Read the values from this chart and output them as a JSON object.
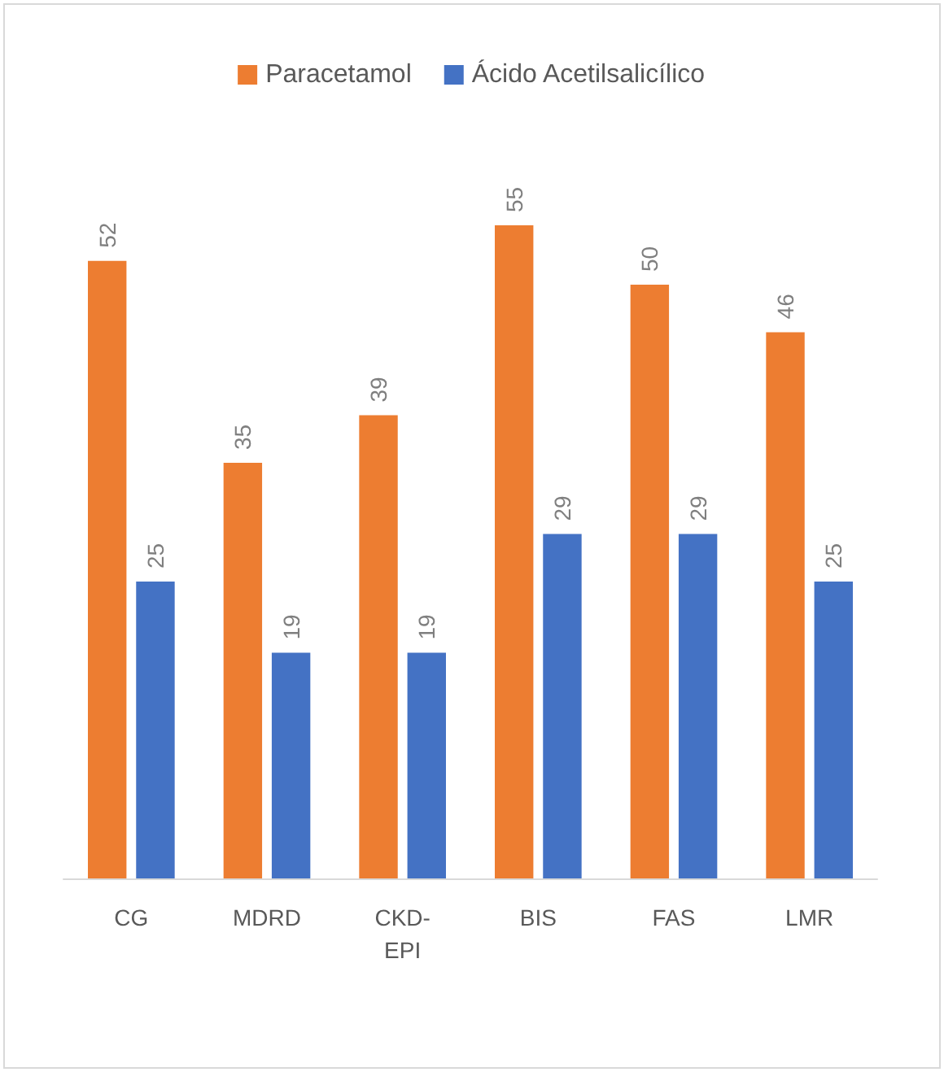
{
  "chart_data": {
    "type": "bar",
    "categories": [
      "CG",
      "MDRD",
      "CKD-EPI",
      "BIS",
      "FAS",
      "LMR"
    ],
    "series": [
      {
        "name": "Paracetamol",
        "color": "#ed7d31",
        "values": [
          52,
          35,
          39,
          55,
          50,
          46
        ]
      },
      {
        "name": "Ácido Acetilsalicílico",
        "color": "#4472c4",
        "values": [
          25,
          19,
          19,
          29,
          29,
          25
        ]
      }
    ],
    "data_labels": true,
    "legend": "top"
  }
}
